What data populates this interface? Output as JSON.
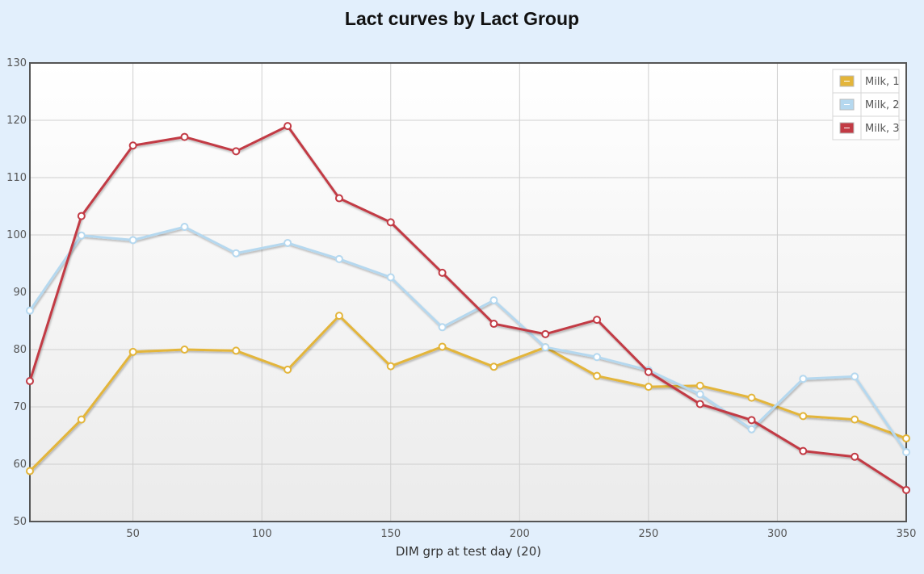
{
  "chart_data": {
    "type": "line",
    "title": "Lact curves by Lact Group",
    "xlabel": "DIM grp at test day (20)",
    "ylabel": "",
    "xlim": [
      10,
      350
    ],
    "ylim": [
      50,
      130
    ],
    "xticks": [
      50,
      100,
      150,
      200,
      250,
      300,
      350
    ],
    "yticks": [
      50,
      60,
      70,
      80,
      90,
      100,
      110,
      120,
      130
    ],
    "grid": true,
    "legend_position": "top-right",
    "x": [
      10,
      30,
      50,
      70,
      90,
      110,
      130,
      150,
      170,
      190,
      210,
      230,
      250,
      270,
      290,
      310,
      330,
      350
    ],
    "series": [
      {
        "name": "Milk, 1",
        "color": "#e3b53a",
        "values": [
          58.8,
          67.8,
          79.6,
          80.0,
          79.8,
          76.5,
          85.9,
          77.1,
          80.5,
          77.0,
          80.4,
          75.4,
          73.5,
          73.7,
          71.6,
          68.4,
          67.8,
          64.5
        ]
      },
      {
        "name": "Milk, 2",
        "color": "#b5d8ef",
        "values": [
          86.8,
          99.9,
          99.1,
          101.4,
          96.8,
          98.6,
          95.8,
          92.6,
          83.9,
          88.6,
          80.4,
          78.7,
          76.4,
          72.2,
          66.1,
          74.9,
          75.3,
          62.1
        ]
      },
      {
        "name": "Milk, 3",
        "color": "#c23b45",
        "values": [
          74.5,
          103.3,
          115.6,
          117.1,
          114.6,
          119.0,
          106.4,
          102.2,
          93.4,
          84.5,
          82.7,
          85.2,
          76.1,
          70.5,
          67.7,
          62.3,
          61.3,
          55.5
        ]
      }
    ]
  }
}
